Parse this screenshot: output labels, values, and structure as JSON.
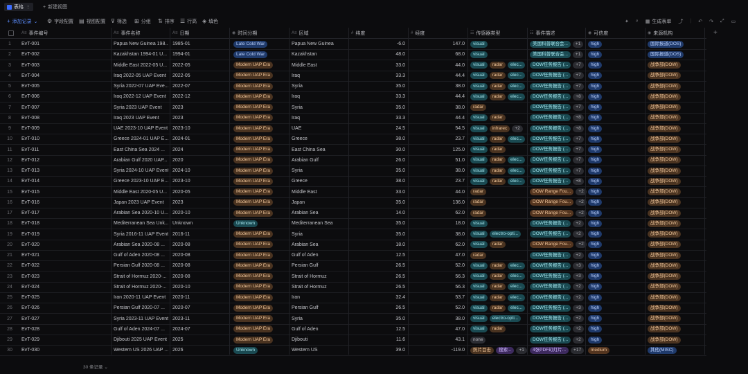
{
  "tabs": [
    {
      "label": "表格"
    },
    {
      "label": "新建视图"
    }
  ],
  "toolbar": {
    "add_record": "添加记录",
    "customize": "字段配置",
    "group": "视图配置",
    "filter": "筛选",
    "group_by": "分组",
    "sort": "排序",
    "row_height": "行高",
    "fill": "填色",
    "share": "生成表单"
  },
  "columns": [
    "事件编号",
    "事件名称",
    "日期",
    "时间分期",
    "区域",
    "纬度",
    "经度",
    "传感器类型",
    "事件描述",
    "可信度",
    "来源机构"
  ],
  "rows": [
    {
      "n": "1",
      "id": "EvT-001",
      "name": "Papua New Guinea 198...",
      "date": "1985-01",
      "era": "Late Cold War",
      "era_c": "blue",
      "region": "Papua New Guinea",
      "lat": "-6.0",
      "lon": "147.0",
      "sensors": [
        {
          "t": "visual",
          "c": "teal"
        }
      ],
      "extra": "",
      "desc": "美国科普联合会...",
      "desc_c": "teal",
      "dcount": "+1",
      "cred": "high",
      "src": "国际报道(DOS)",
      "src_c": "blue"
    },
    {
      "n": "2",
      "id": "EvT-002",
      "name": "Kazakhstan 1994-01 U...",
      "date": "1994-01",
      "era": "Late Cold War",
      "era_c": "blue",
      "region": "Kazakhstan",
      "lat": "48.0",
      "lon": "68.0",
      "sensors": [
        {
          "t": "visual",
          "c": "teal"
        }
      ],
      "extra": "",
      "desc": "美国科普联合会...",
      "desc_c": "teal",
      "dcount": "+1",
      "cred": "high",
      "src": "国际报道(DOS)",
      "src_c": "blue"
    },
    {
      "n": "3",
      "id": "EvT-003",
      "name": "Middle East 2022-05 U...",
      "date": "2022-05",
      "era": "Modern UAP Era",
      "era_c": "brown",
      "region": "Middle East",
      "lat": "33.0",
      "lon": "44.0",
      "sensors": [
        {
          "t": "visual",
          "c": "teal"
        },
        {
          "t": "radar",
          "c": "brown"
        },
        {
          "t": "elec...",
          "c": "teal"
        }
      ],
      "extra": "",
      "desc": "DOW任务报告 (...",
      "desc_c": "teal",
      "dcount": "+7",
      "cred": "high",
      "src": "战争部(DOW)",
      "src_c": "brown"
    },
    {
      "n": "4",
      "id": "EvT-004",
      "name": "Iraq 2022-05 UAP Event",
      "date": "2022-05",
      "era": "Modern UAP Era",
      "era_c": "brown",
      "region": "Iraq",
      "lat": "33.3",
      "lon": "44.4",
      "sensors": [
        {
          "t": "visual",
          "c": "teal"
        },
        {
          "t": "radar",
          "c": "brown"
        },
        {
          "t": "elec...",
          "c": "teal"
        }
      ],
      "extra": "",
      "desc": "DOW任务报告 (...",
      "desc_c": "teal",
      "dcount": "+7",
      "cred": "high",
      "src": "战争部(DOW)",
      "src_c": "brown"
    },
    {
      "n": "5",
      "id": "EvT-005",
      "name": "Syria 2022-07 UAP Eve...",
      "date": "2022-07",
      "era": "Modern UAP Era",
      "era_c": "brown",
      "region": "Syria",
      "lat": "35.0",
      "lon": "38.0",
      "sensors": [
        {
          "t": "visual",
          "c": "teal"
        },
        {
          "t": "radar",
          "c": "brown"
        },
        {
          "t": "elec...",
          "c": "teal"
        }
      ],
      "extra": "",
      "desc": "DOW任务报告 (...",
      "desc_c": "teal",
      "dcount": "+7",
      "cred": "high",
      "src": "战争部(DOW)",
      "src_c": "brown"
    },
    {
      "n": "6",
      "id": "EvT-006",
      "name": "Iraq 2022-12 UAP Event",
      "date": "2022-12",
      "era": "Modern UAP Era",
      "era_c": "brown",
      "region": "Iraq",
      "lat": "33.3",
      "lon": "44.4",
      "sensors": [
        {
          "t": "visual",
          "c": "teal"
        },
        {
          "t": "radar",
          "c": "brown"
        },
        {
          "t": "elec...",
          "c": "teal"
        }
      ],
      "extra": "",
      "desc": "DOW任务报告 (...",
      "desc_c": "teal",
      "dcount": "+8",
      "cred": "high",
      "src": "战争部(DOW)",
      "src_c": "brown"
    },
    {
      "n": "7",
      "id": "EvT-007",
      "name": "Syria 2023 UAP Event",
      "date": "2023",
      "era": "Modern UAP Era",
      "era_c": "brown",
      "region": "Syria",
      "lat": "35.0",
      "lon": "38.0",
      "sensors": [
        {
          "t": "radar",
          "c": "brown"
        }
      ],
      "extra": "",
      "desc": "DOW任务报告 (...",
      "desc_c": "teal",
      "dcount": "+7",
      "cred": "high",
      "src": "战争部(DOW)",
      "src_c": "brown"
    },
    {
      "n": "8",
      "id": "EvT-008",
      "name": "Iraq 2023 UAP Event",
      "date": "2023",
      "era": "Modern UAP Era",
      "era_c": "brown",
      "region": "Iraq",
      "lat": "33.3",
      "lon": "44.4",
      "sensors": [
        {
          "t": "visual",
          "c": "teal"
        },
        {
          "t": "radar",
          "c": "brown"
        }
      ],
      "extra": "",
      "desc": "DOW任务报告 (...",
      "desc_c": "teal",
      "dcount": "+8",
      "cred": "high",
      "src": "战争部(DOW)",
      "src_c": "brown"
    },
    {
      "n": "9",
      "id": "EvT-009",
      "name": "UAE 2023-10 UAP Event",
      "date": "2023-10",
      "era": "Modern UAP Era",
      "era_c": "brown",
      "region": "UAE",
      "lat": "24.5",
      "lon": "54.5",
      "sensors": [
        {
          "t": "visual",
          "c": "teal"
        },
        {
          "t": "infrarec",
          "c": "brown"
        }
      ],
      "extra": "+2",
      "desc": "DOW任务报告 (...",
      "desc_c": "teal",
      "dcount": "+8",
      "cred": "high",
      "src": "战争部(DOW)",
      "src_c": "brown"
    },
    {
      "n": "10",
      "id": "EvT-010",
      "name": "Greece 2024-01 UAP E...",
      "date": "2024-01",
      "era": "Modern UAP Era",
      "era_c": "brown",
      "region": "Greece",
      "lat": "38.0",
      "lon": "23.7",
      "sensors": [
        {
          "t": "visual",
          "c": "teal"
        },
        {
          "t": "radar",
          "c": "brown"
        },
        {
          "t": "elec...",
          "c": "teal"
        }
      ],
      "extra": "",
      "desc": "DOW任务报告 (...",
      "desc_c": "teal",
      "dcount": "+7",
      "cred": "high",
      "src": "战争部(DOW)",
      "src_c": "brown"
    },
    {
      "n": "11",
      "id": "EvT-011",
      "name": "East China Sea 2024 ...",
      "date": "2024",
      "era": "Modern UAP Era",
      "era_c": "brown",
      "region": "East China Sea",
      "lat": "30.0",
      "lon": "125.0",
      "sensors": [
        {
          "t": "visual",
          "c": "teal"
        },
        {
          "t": "radar",
          "c": "brown"
        }
      ],
      "extra": "",
      "desc": "DOW任务报告 (...",
      "desc_c": "teal",
      "dcount": "+7",
      "cred": "high",
      "src": "战争部(DOW)",
      "src_c": "brown"
    },
    {
      "n": "12",
      "id": "EvT-012",
      "name": "Arabian Gulf 2020 UAP...",
      "date": "2020",
      "era": "Modern UAP Era",
      "era_c": "brown",
      "region": "Arabian Gulf",
      "lat": "26.0",
      "lon": "51.0",
      "sensors": [
        {
          "t": "visual",
          "c": "teal"
        },
        {
          "t": "radar",
          "c": "brown"
        },
        {
          "t": "elec...",
          "c": "teal"
        }
      ],
      "extra": "",
      "desc": "DOW任务报告 (...",
      "desc_c": "teal",
      "dcount": "+7",
      "cred": "high",
      "src": "战争部(DOW)",
      "src_c": "brown"
    },
    {
      "n": "13",
      "id": "EvT-013",
      "name": "Syria 2024-10 UAP Event",
      "date": "2024-10",
      "era": "Modern UAP Era",
      "era_c": "brown",
      "region": "Syria",
      "lat": "35.0",
      "lon": "38.0",
      "sensors": [
        {
          "t": "visual",
          "c": "teal"
        },
        {
          "t": "radar",
          "c": "brown"
        },
        {
          "t": "elec...",
          "c": "teal"
        }
      ],
      "extra": "",
      "desc": "DOW任务报告 (...",
      "desc_c": "teal",
      "dcount": "+7",
      "cred": "high",
      "src": "战争部(DOW)",
      "src_c": "brown"
    },
    {
      "n": "14",
      "id": "EvT-014",
      "name": "Greece 2023-10 UAP E...",
      "date": "2023-10",
      "era": "Modern UAP Era",
      "era_c": "brown",
      "region": "Greece",
      "lat": "38.0",
      "lon": "23.7",
      "sensors": [
        {
          "t": "visual",
          "c": "teal"
        },
        {
          "t": "radar",
          "c": "brown"
        },
        {
          "t": "elec...",
          "c": "teal"
        }
      ],
      "extra": "",
      "desc": "DOW任务报告 (...",
      "desc_c": "teal",
      "dcount": "+8",
      "cred": "high",
      "src": "战争部(DOW)",
      "src_c": "brown"
    },
    {
      "n": "15",
      "id": "EvT-015",
      "name": "Middle East 2020-05 U...",
      "date": "2020-05",
      "era": "Modern UAP Era",
      "era_c": "brown",
      "region": "Middle East",
      "lat": "33.0",
      "lon": "44.0",
      "sensors": [
        {
          "t": "radar",
          "c": "brown"
        }
      ],
      "extra": "",
      "desc": "DOW Range Fou...",
      "desc_c": "orange",
      "dcount": "+2",
      "cred": "high",
      "src": "战争部(DOW)",
      "src_c": "brown"
    },
    {
      "n": "16",
      "id": "EvT-016",
      "name": "Japan 2023 UAP Event",
      "date": "2023",
      "era": "Modern UAP Era",
      "era_c": "brown",
      "region": "Japan",
      "lat": "35.0",
      "lon": "136.0",
      "sensors": [
        {
          "t": "radar",
          "c": "brown"
        }
      ],
      "extra": "",
      "desc": "DOW Range Fou...",
      "desc_c": "orange",
      "dcount": "+2",
      "cred": "high",
      "src": "战争部(DOW)",
      "src_c": "brown"
    },
    {
      "n": "17",
      "id": "EvT-017",
      "name": "Arabian Sea 2020-10 U...",
      "date": "2020-10",
      "era": "Modern UAP Era",
      "era_c": "brown",
      "region": "Arabian Sea",
      "lat": "14.0",
      "lon": "62.0",
      "sensors": [
        {
          "t": "radar",
          "c": "brown"
        }
      ],
      "extra": "",
      "desc": "DOW Range Fou...",
      "desc_c": "orange",
      "dcount": "+2",
      "cred": "high",
      "src": "战争部(DOW)",
      "src_c": "brown"
    },
    {
      "n": "18",
      "id": "EvT-018",
      "name": "Mediterranean Sea Unk...",
      "date": "Unknown",
      "era": "Unknown",
      "era_c": "tealsm",
      "region": "Mediterranean Sea",
      "lat": "35.0",
      "lon": "18.0",
      "sensors": [
        {
          "t": "visual",
          "c": "teal"
        }
      ],
      "extra": "",
      "desc": "DOW任务报告 (...",
      "desc_c": "teal",
      "dcount": "+2",
      "cred": "high",
      "src": "战争部(DOW)",
      "src_c": "brown"
    },
    {
      "n": "19",
      "id": "EvT-019",
      "name": "Syria 2016-11 UAP Event",
      "date": "2016-11",
      "era": "Modern UAP Era",
      "era_c": "brown",
      "region": "Syria",
      "lat": "35.0",
      "lon": "38.0",
      "sensors": [
        {
          "t": "visual",
          "c": "teal"
        },
        {
          "t": "electro-opti...",
          "c": "teal"
        }
      ],
      "extra": "",
      "desc": "DOW任务报告 (...",
      "desc_c": "teal",
      "dcount": "+2",
      "cred": "high",
      "src": "战争部(DOW)",
      "src_c": "brown"
    },
    {
      "n": "20",
      "id": "EvT-020",
      "name": "Arabian Sea 2020-08 ...",
      "date": "2020-08",
      "era": "Modern UAP Era",
      "era_c": "brown",
      "region": "Arabian Sea",
      "lat": "18.0",
      "lon": "62.0",
      "sensors": [
        {
          "t": "visual",
          "c": "teal"
        },
        {
          "t": "radar",
          "c": "brown"
        }
      ],
      "extra": "",
      "desc": "DOW Range Fou...",
      "desc_c": "orange",
      "dcount": "+2",
      "cred": "high",
      "src": "战争部(DOW)",
      "src_c": "brown"
    },
    {
      "n": "21",
      "id": "EvT-021",
      "name": "Gulf of Aden 2020-08 ...",
      "date": "2020-08",
      "era": "Modern UAP Era",
      "era_c": "brown",
      "region": "Gulf of Aden",
      "lat": "12.5",
      "lon": "47.0",
      "sensors": [
        {
          "t": "radar",
          "c": "brown"
        }
      ],
      "extra": "",
      "desc": "DOW任务报告 (...",
      "desc_c": "teal",
      "dcount": "+2",
      "cred": "high",
      "src": "战争部(DOW)",
      "src_c": "brown"
    },
    {
      "n": "22",
      "id": "EvT-022",
      "name": "Persian Gulf 2020-08 ...",
      "date": "2020-08",
      "era": "Modern UAP Era",
      "era_c": "brown",
      "region": "Persian Gulf",
      "lat": "26.5",
      "lon": "52.0",
      "sensors": [
        {
          "t": "visual",
          "c": "teal"
        },
        {
          "t": "radar",
          "c": "brown"
        },
        {
          "t": "elec...",
          "c": "teal"
        }
      ],
      "extra": "",
      "desc": "DOW任务报告 (...",
      "desc_c": "teal",
      "dcount": "+3",
      "cred": "high",
      "src": "战争部(DOW)",
      "src_c": "brown"
    },
    {
      "n": "23",
      "id": "EvT-023",
      "name": "Strait of Hormuz 2020-...",
      "date": "2020-08",
      "era": "Modern UAP Era",
      "era_c": "brown",
      "region": "Strait of Hormuz",
      "lat": "26.5",
      "lon": "56.3",
      "sensors": [
        {
          "t": "visual",
          "c": "teal"
        },
        {
          "t": "radar",
          "c": "brown"
        },
        {
          "t": "elec...",
          "c": "teal"
        }
      ],
      "extra": "",
      "desc": "DOW任务报告 (...",
      "desc_c": "teal",
      "dcount": "+3",
      "cred": "high",
      "src": "战争部(DOW)",
      "src_c": "brown"
    },
    {
      "n": "24",
      "id": "EvT-024",
      "name": "Strait of Hormuz 2020-...",
      "date": "2020-10",
      "era": "Modern UAP Era",
      "era_c": "brown",
      "region": "Strait of Hormuz",
      "lat": "26.5",
      "lon": "56.3",
      "sensors": [
        {
          "t": "visual",
          "c": "teal"
        },
        {
          "t": "radar",
          "c": "brown"
        },
        {
          "t": "elec...",
          "c": "teal"
        }
      ],
      "extra": "",
      "desc": "DOW任务报告 (...",
      "desc_c": "teal",
      "dcount": "+2",
      "cred": "high",
      "src": "战争部(DOW)",
      "src_c": "brown"
    },
    {
      "n": "25",
      "id": "EvT-025",
      "name": "Iran 2020-11 UAP Event",
      "date": "2020-11",
      "era": "Modern UAP Era",
      "era_c": "brown",
      "region": "Iran",
      "lat": "32.4",
      "lon": "53.7",
      "sensors": [
        {
          "t": "visual",
          "c": "teal"
        },
        {
          "t": "radar",
          "c": "brown"
        },
        {
          "t": "elec...",
          "c": "teal"
        }
      ],
      "extra": "",
      "desc": "DOW任务报告 (...",
      "desc_c": "teal",
      "dcount": "+2",
      "cred": "high",
      "src": "战争部(DOW)",
      "src_c": "brown"
    },
    {
      "n": "26",
      "id": "EvT-026",
      "name": "Persian Gulf 2020-07 ...",
      "date": "2020-07",
      "era": "Modern UAP Era",
      "era_c": "brown",
      "region": "Persian Gulf",
      "lat": "26.5",
      "lon": "52.0",
      "sensors": [
        {
          "t": "visual",
          "c": "teal"
        },
        {
          "t": "radar",
          "c": "brown"
        },
        {
          "t": "elec...",
          "c": "teal"
        }
      ],
      "extra": "",
      "desc": "DOW任务报告 (...",
      "desc_c": "teal",
      "dcount": "+3",
      "cred": "high",
      "src": "战争部(DOW)",
      "src_c": "brown"
    },
    {
      "n": "27",
      "id": "EvT-027",
      "name": "Syria 2023-11 UAP Event",
      "date": "2023-11",
      "era": "Modern UAP Era",
      "era_c": "brown",
      "region": "Syria",
      "lat": "35.0",
      "lon": "38.0",
      "sensors": [
        {
          "t": "visual",
          "c": "teal"
        },
        {
          "t": "electro-opti...",
          "c": "teal"
        }
      ],
      "extra": "",
      "desc": "DOW任务报告 (...",
      "desc_c": "teal",
      "dcount": "+2",
      "cred": "high",
      "src": "战争部(DOW)",
      "src_c": "brown"
    },
    {
      "n": "28",
      "id": "EvT-028",
      "name": "Gulf of Aden 2024-07 ...",
      "date": "2024-07",
      "era": "Modern UAP Era",
      "era_c": "brown",
      "region": "Gulf of Aden",
      "lat": "12.5",
      "lon": "47.0",
      "sensors": [
        {
          "t": "visual",
          "c": "teal"
        },
        {
          "t": "radar",
          "c": "brown"
        }
      ],
      "extra": "",
      "desc": "DOW任务报告 (...",
      "desc_c": "teal",
      "dcount": "+2",
      "cred": "high",
      "src": "战争部(DOW)",
      "src_c": "brown"
    },
    {
      "n": "29",
      "id": "EvT-029",
      "name": "Djibouti 2025 UAP Event",
      "date": "2025",
      "era": "Modern UAP Era",
      "era_c": "brown",
      "region": "Djibouti",
      "lat": "11.6",
      "lon": "43.1",
      "sensors": [
        {
          "t": "none",
          "c": "grey"
        }
      ],
      "extra": "",
      "desc": "DOW任务报告 (...",
      "desc_c": "teal",
      "dcount": "+2",
      "cred": "high",
      "src": "战争部(DOW)",
      "src_c": "brown"
    },
    {
      "n": "30",
      "id": "EvT-030",
      "name": "Western US 2026 UAP ...",
      "date": "2026",
      "era": "Unknown",
      "era_c": "tealsm",
      "region": "Western US",
      "lat": "39.0",
      "lon": "-119.0",
      "sensors": [
        {
          "t": "照片目击",
          "c": "brown"
        },
        {
          "t": "搜索...",
          "c": "purple"
        }
      ],
      "extra": "+1",
      "desc": "4张PDF幻灯片...",
      "desc_c": "purple",
      "dcount": "+17",
      "cred": "medium",
      "cred_c": "orange",
      "src": "其他(MISC)",
      "src_c": "blue"
    }
  ],
  "footer": "30 条记录"
}
